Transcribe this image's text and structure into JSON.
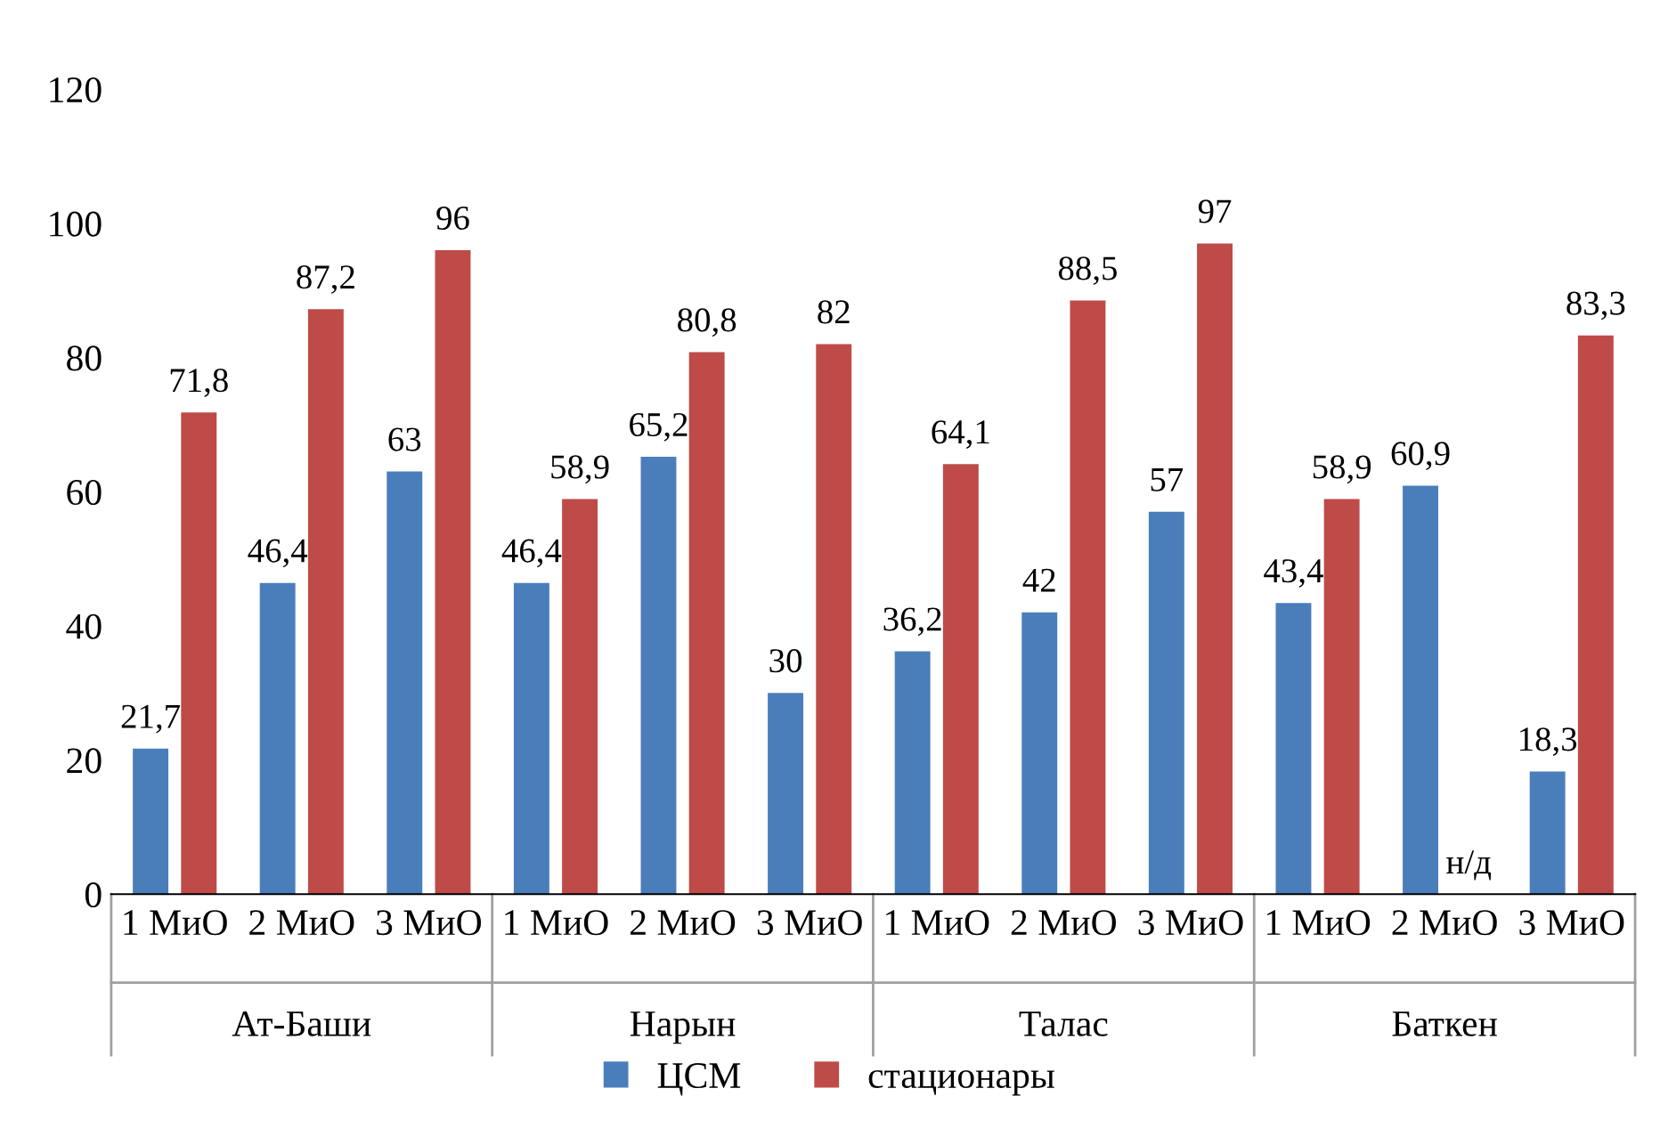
{
  "chart_data": {
    "type": "bar",
    "categories": [
      "1 МиО",
      "2 МиО",
      "3 МиО",
      "1 МиО",
      "2 МиО",
      "3 МиО",
      "1 МиО",
      "2 МиО",
      "3 МиО",
      "1 МиО",
      "2 МиО",
      "3 МиО"
    ],
    "series": [
      {
        "name": "ЦСМ",
        "color": "#4a7ebb",
        "values": [
          21.7,
          46.4,
          63,
          46.4,
          65.2,
          30,
          36.2,
          42,
          57,
          43.4,
          60.9,
          18.3
        ],
        "value_labels": [
          "21,7",
          "46,4",
          "63",
          "46,4",
          "65,2",
          "30",
          "36,2",
          "42",
          "57",
          "43,4",
          "60,9",
          "18,3"
        ]
      },
      {
        "name": "стационары",
        "color": "#be4b48",
        "values": [
          71.8,
          87.2,
          96,
          58.9,
          80.8,
          82,
          64.1,
          88.5,
          97,
          58.9,
          null,
          83.3
        ],
        "value_labels": [
          "71,8",
          "87,2",
          "96",
          "58,9",
          "80,8",
          "82",
          "64,1",
          "88,5",
          "97",
          "58,9",
          "н/д",
          "83,3"
        ]
      }
    ],
    "annotations": [
      "Ат-Баши",
      "Нарын",
      "Талас",
      "Баткен"
    ],
    "ylim": [
      0,
      120
    ],
    "yticks": [
      0,
      20,
      40,
      60,
      80,
      100,
      120
    ],
    "grid": false,
    "legend": "bottom"
  }
}
